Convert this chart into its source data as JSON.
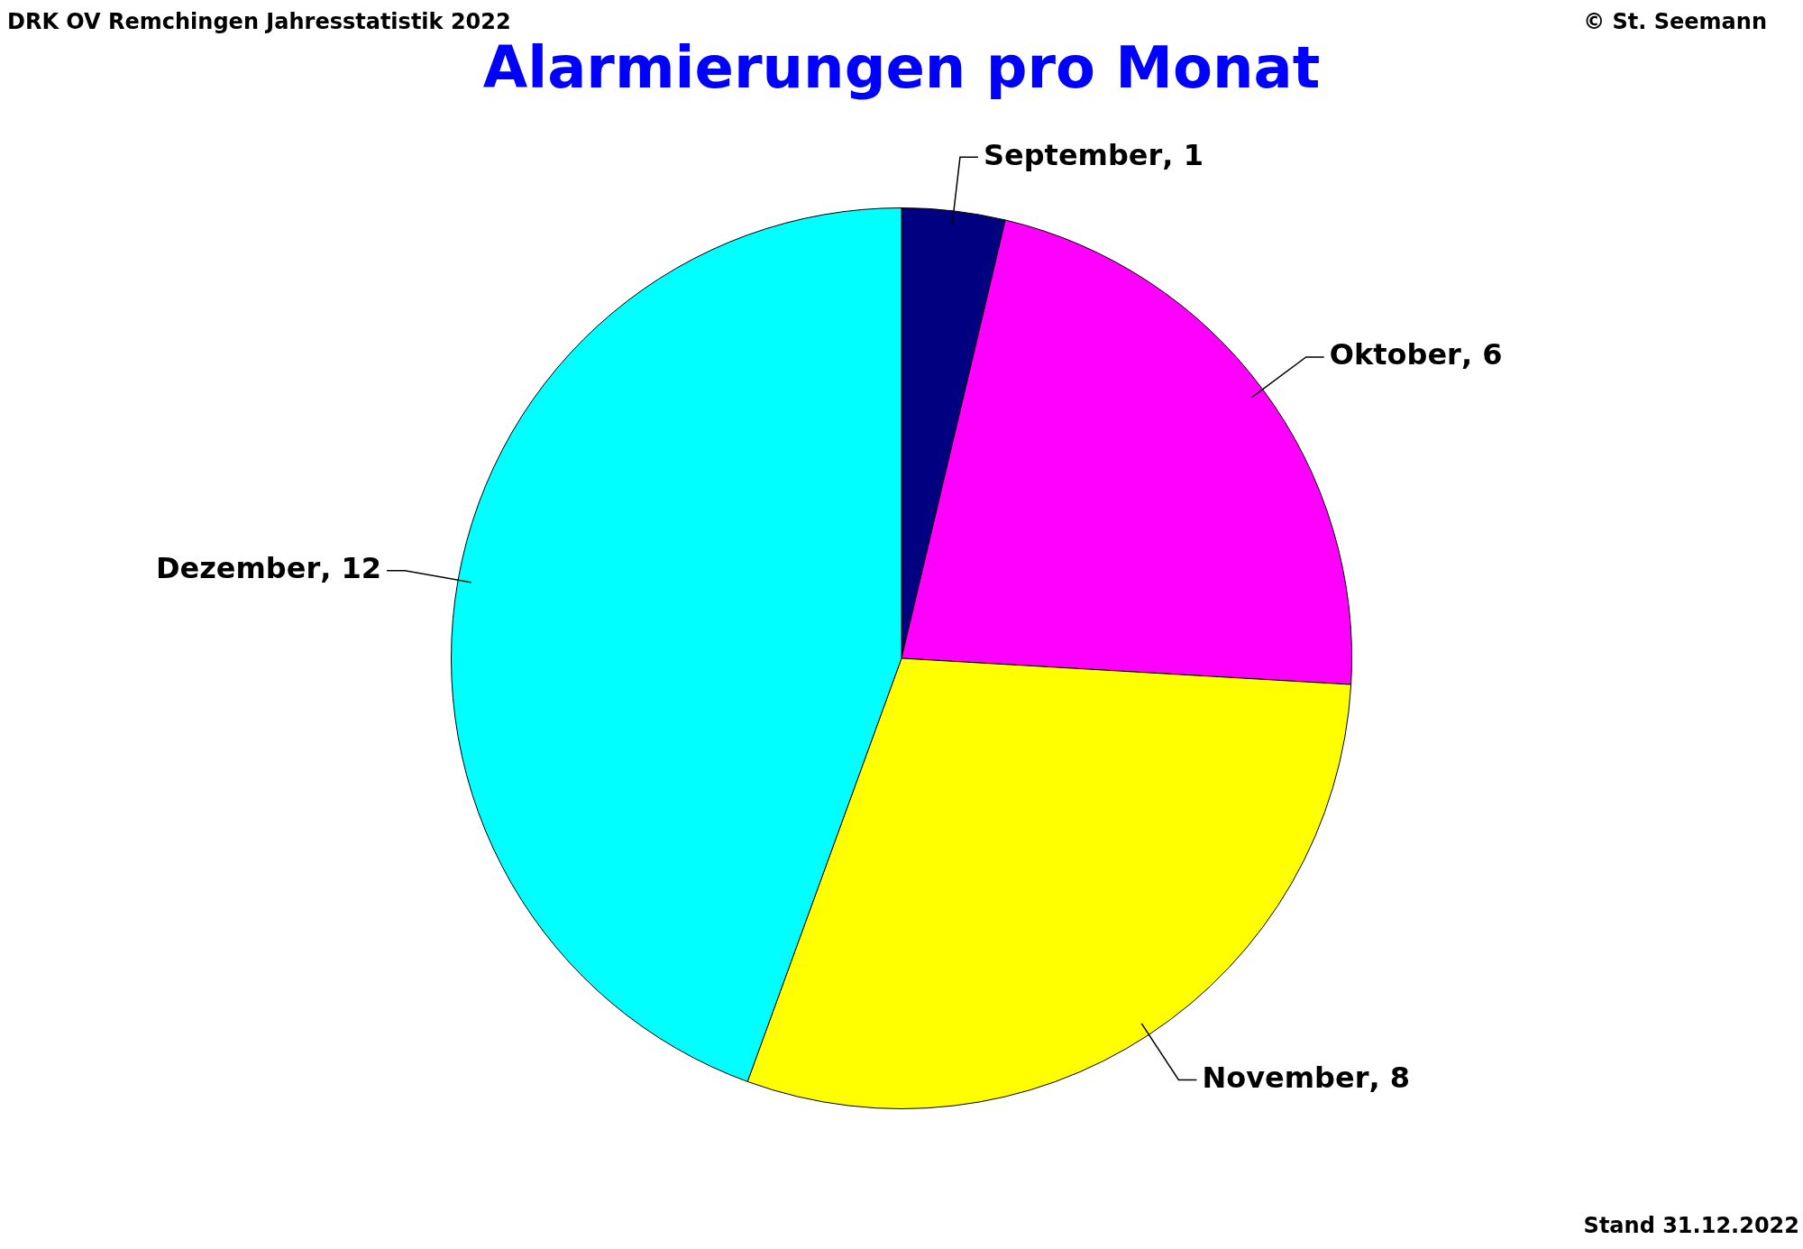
{
  "chart_data": {
    "type": "pie",
    "title": "Alarmierungen pro Monat",
    "categories": [
      "September",
      "Oktober",
      "November",
      "Dezember"
    ],
    "values": [
      1,
      6,
      8,
      12
    ],
    "colors": [
      "#000080",
      "#ff00ff",
      "#ffff00",
      "#00ffff"
    ],
    "value_labels": [
      ", 1",
      ", 6",
      ", 8",
      ", 12"
    ],
    "legend": false,
    "annotations": [
      "DRK OV Remchingen Jahresstatistik 2022",
      "© St. Seemann",
      "Stand 31.12.2022"
    ]
  }
}
